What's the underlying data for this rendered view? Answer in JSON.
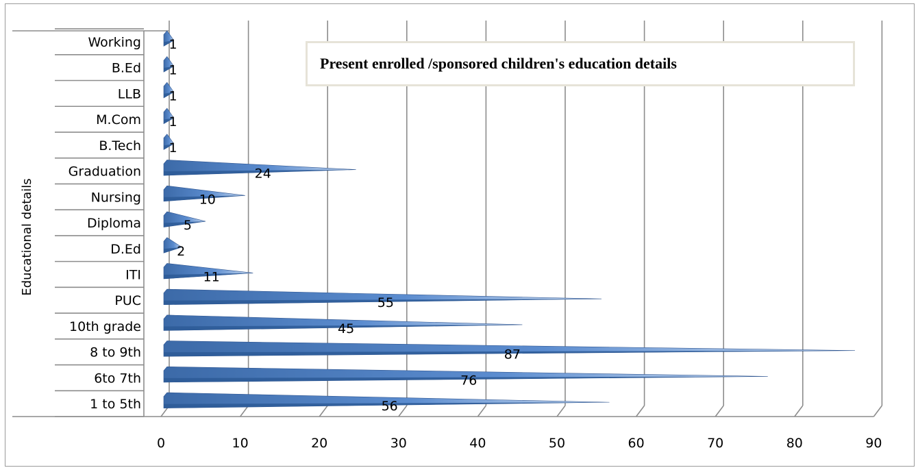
{
  "chart_data": {
    "type": "bar",
    "orientation": "horizontal",
    "title": "Present enrolled /sponsored children's education details",
    "ylabel": "Educational details",
    "xlabel": "",
    "xlim": [
      0,
      90
    ],
    "x_ticks": [
      "0",
      "10",
      "20",
      "30",
      "40",
      "50",
      "60",
      "70",
      "80",
      "90"
    ],
    "categories": [
      "1 to 5th",
      "6to 7th",
      "8 to 9th",
      "10th grade",
      "PUC",
      "ITI",
      "D.Ed",
      "Diploma",
      "Nursing",
      "Graduation",
      "B.Tech",
      "M.Com",
      "LLB",
      "B.Ed",
      "Working"
    ],
    "values": [
      56,
      76,
      87,
      45,
      55,
      11,
      2,
      5,
      10,
      24,
      1,
      1,
      1,
      1,
      1
    ],
    "data_labels": [
      "56",
      "76",
      "87",
      "45",
      "55",
      "11",
      "2",
      "5",
      "10",
      "24",
      "1",
      "1",
      "1",
      "1",
      "1"
    ],
    "grid": true,
    "legend": "none",
    "bar_color": "#4f81bd",
    "grid_color": "#8c8c8c"
  }
}
